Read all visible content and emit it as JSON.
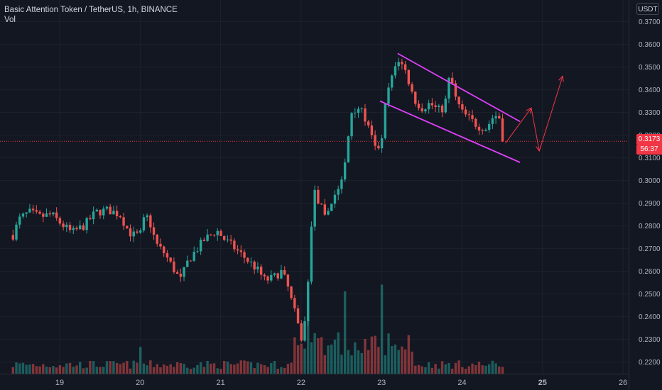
{
  "header": {
    "symbol": "Basic Attention Token / TetherUS, 1h, BINANCE",
    "indicator": "Vol"
  },
  "axis": {
    "unit_label": "USDT"
  },
  "last_price": {
    "value": "0.3173",
    "timer": "56:37"
  },
  "colors": {
    "background": "#131722",
    "grid": "#1e222d",
    "up": "#26a69a",
    "down": "#ef5350",
    "channel": "#e040fb",
    "projection": "#f23645",
    "price_line": "#f23645"
  },
  "chart_data": {
    "type": "candlestick",
    "title": "Basic Attention Token / TetherUS, 1h, BINANCE",
    "ylim": [
      0.2155,
      0.3725
    ],
    "y_ticks": [
      "0.3700",
      "0.3600",
      "0.3500",
      "0.3400",
      "0.3300",
      "0.3200",
      "0.3100",
      "0.3000",
      "0.2900",
      "0.2800",
      "0.2700",
      "0.2600",
      "0.2500",
      "0.2400",
      "0.2300",
      "0.2200"
    ],
    "x_ticks": [
      "19",
      "20",
      "21",
      "22",
      "23",
      "24",
      "25",
      "26"
    ],
    "bar_interval": "1h",
    "first_bar_day": 18.42,
    "close_anchors": [
      [
        18.42,
        0.276
      ],
      [
        18.5,
        0.283
      ],
      [
        18.62,
        0.286
      ],
      [
        18.75,
        0.284
      ],
      [
        18.9,
        0.285
      ],
      [
        19.0,
        0.2815
      ],
      [
        19.15,
        0.277
      ],
      [
        19.3,
        0.28
      ],
      [
        19.45,
        0.286
      ],
      [
        19.6,
        0.287
      ],
      [
        19.75,
        0.285
      ],
      [
        19.85,
        0.278
      ],
      [
        19.9,
        0.276
      ],
      [
        20.0,
        0.276
      ],
      [
        20.05,
        0.283
      ],
      [
        20.1,
        0.284
      ],
      [
        20.2,
        0.272
      ],
      [
        20.3,
        0.268
      ],
      [
        20.4,
        0.262
      ],
      [
        20.5,
        0.256
      ],
      [
        20.6,
        0.265
      ],
      [
        20.8,
        0.274
      ],
      [
        20.95,
        0.278
      ],
      [
        21.05,
        0.274
      ],
      [
        21.15,
        0.271
      ],
      [
        21.3,
        0.266
      ],
      [
        21.45,
        0.261
      ],
      [
        21.55,
        0.256
      ],
      [
        21.65,
        0.257
      ],
      [
        21.75,
        0.26
      ],
      [
        21.82,
        0.255
      ],
      [
        21.88,
        0.247
      ],
      [
        21.95,
        0.238
      ],
      [
        22.0,
        0.23
      ],
      [
        22.06,
        0.24
      ],
      [
        22.1,
        0.262
      ],
      [
        22.15,
        0.296
      ],
      [
        22.25,
        0.288
      ],
      [
        22.3,
        0.283
      ],
      [
        22.38,
        0.291
      ],
      [
        22.45,
        0.296
      ],
      [
        22.5,
        0.299
      ],
      [
        22.55,
        0.308
      ],
      [
        22.62,
        0.33
      ],
      [
        22.7,
        0.333
      ],
      [
        22.8,
        0.327
      ],
      [
        22.92,
        0.314
      ],
      [
        23.0,
        0.316
      ],
      [
        23.06,
        0.338
      ],
      [
        23.12,
        0.344
      ],
      [
        23.2,
        0.354
      ],
      [
        23.3,
        0.348
      ],
      [
        23.4,
        0.336
      ],
      [
        23.5,
        0.332
      ],
      [
        23.6,
        0.334
      ],
      [
        23.7,
        0.331
      ],
      [
        23.78,
        0.332
      ],
      [
        23.85,
        0.347
      ],
      [
        23.92,
        0.336
      ],
      [
        24.0,
        0.33
      ],
      [
        24.1,
        0.327
      ],
      [
        24.2,
        0.324
      ],
      [
        24.3,
        0.323
      ],
      [
        24.4,
        0.329
      ],
      [
        24.52,
        0.3265
      ],
      [
        24.54,
        0.3173
      ]
    ],
    "volume_peaks": [
      {
        "day": 20.0,
        "volume": 0.28
      },
      {
        "day": 22.1,
        "volume": 0.85
      },
      {
        "day": 22.55,
        "volume": 0.86
      },
      {
        "day": 23.0,
        "volume": 0.93
      }
    ],
    "annotations": {
      "channel_upper": [
        [
          23.2,
          0.356
        ],
        [
          24.72,
          0.326
        ]
      ],
      "channel_lower": [
        [
          22.98,
          0.335
        ],
        [
          24.72,
          0.308
        ]
      ],
      "projection_path": [
        [
          24.54,
          0.3165
        ],
        [
          24.86,
          0.332
        ],
        [
          24.96,
          0.313
        ],
        [
          25.25,
          0.346
        ]
      ]
    }
  }
}
